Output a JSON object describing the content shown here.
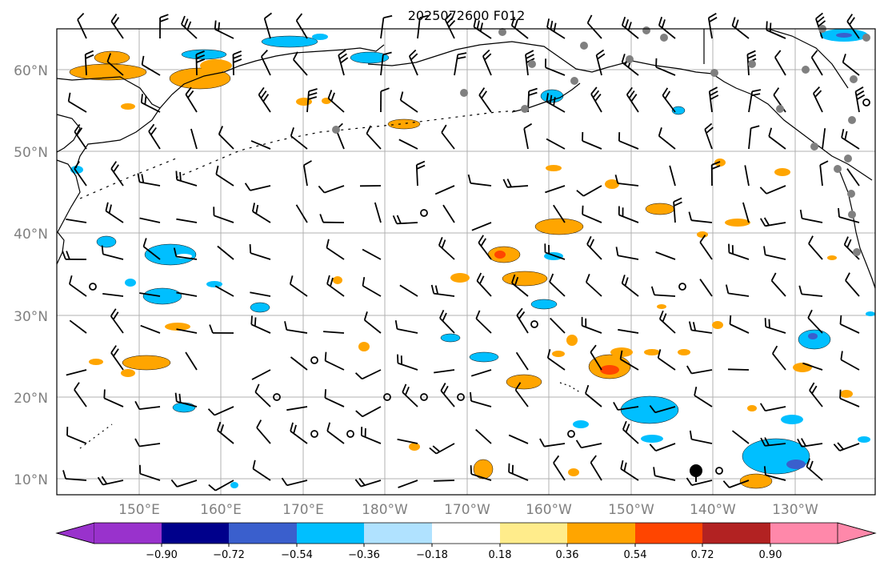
{
  "title": "2025072600 F012",
  "lat_labels": [
    "60°N",
    "50°N",
    "40°N",
    "30°N",
    "20°N",
    "10°N"
  ],
  "lon_labels": [
    "150°E",
    "160°E",
    "170°E",
    "180°W",
    "170°W",
    "160°W",
    "150°W",
    "140°W",
    "130°W"
  ],
  "colorbar": {
    "ticks": [
      "−0.90",
      "−0.72",
      "−0.54",
      "−0.36",
      "−0.18",
      "0.18",
      "0.36",
      "0.54",
      "0.72",
      "0.90"
    ],
    "colors": [
      "#9932cc",
      "#00008b",
      "#3a5fcd",
      "#00bfff",
      "#b0e2ff",
      "#ffffff",
      "#ffec8b",
      "#ffa500",
      "#ff4500",
      "#b22222",
      "#ff88aa"
    ]
  },
  "colors": {
    "neg_light": "#b0e2ff",
    "neg_mid": "#00bfff",
    "neg_dark": "#3a5fcd",
    "pos_light": "#ffec8b",
    "pos_mid": "#ffa500",
    "pos_high": "#ff4500",
    "station_gray": "#808080"
  }
}
